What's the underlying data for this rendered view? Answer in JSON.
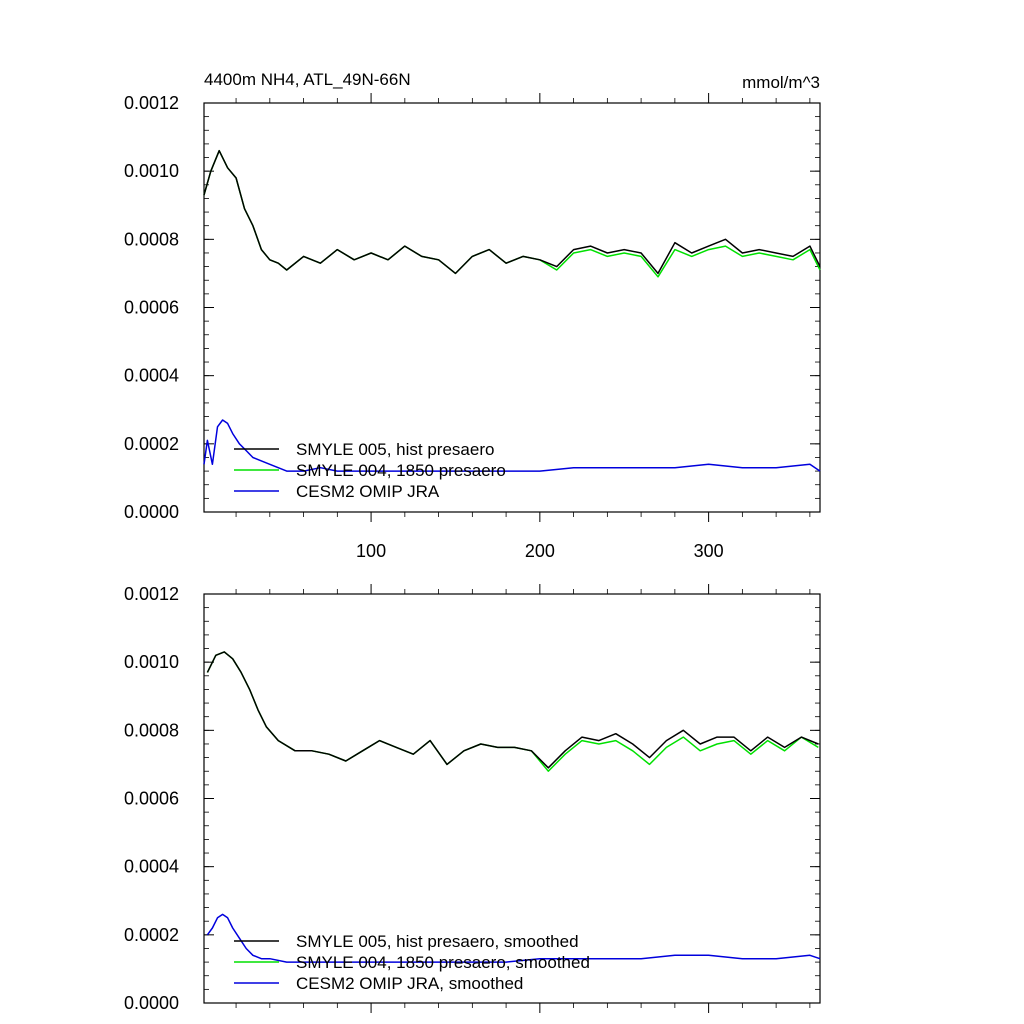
{
  "header": {
    "title": "4400m NH4, ATL_49N-66N",
    "units": "mmol/m^3"
  },
  "colors": {
    "smyle005": "#000000",
    "smyle004": "#00e000",
    "cesm2": "#0000dd"
  },
  "chart_data": [
    {
      "type": "line",
      "title": "4400m NH4, ATL_49N-66N",
      "units": "mmol/m^3",
      "xlim": [
        1,
        366
      ],
      "ylim": [
        0,
        0.0012
      ],
      "x_major_ticks": [
        100,
        200,
        300
      ],
      "x_tick_labels": [
        "100",
        "200",
        "300"
      ],
      "y_ticks": [
        0,
        0.0002,
        0.0004,
        0.0006,
        0.0008,
        0.001,
        0.0012
      ],
      "y_tick_labels": [
        "0.0000",
        "0.0002",
        "0.0004",
        "0.0006",
        "0.0008",
        "0.0010",
        "0.0012"
      ],
      "grid": false,
      "legend_position": "bottom-left",
      "series": [
        {
          "name": "SMYLE 005, hist presaero",
          "color_key": "smyle005",
          "x": [
            1,
            5,
            10,
            15,
            20,
            25,
            30,
            35,
            40,
            45,
            50,
            60,
            70,
            80,
            90,
            100,
            110,
            120,
            130,
            140,
            150,
            160,
            170,
            180,
            190,
            200,
            210,
            220,
            230,
            240,
            250,
            260,
            270,
            280,
            290,
            300,
            310,
            320,
            330,
            340,
            350,
            360,
            366
          ],
          "y": [
            0.00093,
            0.001,
            0.00106,
            0.00101,
            0.00098,
            0.00089,
            0.00084,
            0.00077,
            0.00074,
            0.00073,
            0.00071,
            0.00075,
            0.00073,
            0.00077,
            0.00074,
            0.00076,
            0.00074,
            0.00078,
            0.00075,
            0.00074,
            0.0007,
            0.00075,
            0.00077,
            0.00073,
            0.00075,
            0.00074,
            0.00072,
            0.00077,
            0.00078,
            0.00076,
            0.00077,
            0.00076,
            0.0007,
            0.00079,
            0.00076,
            0.00078,
            0.0008,
            0.00076,
            0.00077,
            0.00076,
            0.00075,
            0.00078,
            0.00072
          ]
        },
        {
          "name": "SMYLE 004, 1850 presaero",
          "color_key": "smyle004",
          "x": [
            1,
            5,
            10,
            15,
            20,
            25,
            30,
            35,
            40,
            45,
            50,
            60,
            70,
            80,
            90,
            100,
            110,
            120,
            130,
            140,
            150,
            160,
            170,
            180,
            190,
            200,
            210,
            220,
            230,
            240,
            250,
            260,
            270,
            280,
            290,
            300,
            310,
            320,
            330,
            340,
            350,
            360,
            366
          ],
          "y": [
            0.00093,
            0.001,
            0.00106,
            0.00101,
            0.00098,
            0.00089,
            0.00084,
            0.00077,
            0.00074,
            0.00073,
            0.00071,
            0.00075,
            0.00073,
            0.00077,
            0.00074,
            0.00076,
            0.00074,
            0.00078,
            0.00075,
            0.00074,
            0.0007,
            0.00075,
            0.00077,
            0.00073,
            0.00075,
            0.00074,
            0.00071,
            0.00076,
            0.00077,
            0.00075,
            0.00076,
            0.00075,
            0.00069,
            0.00077,
            0.00075,
            0.00077,
            0.00078,
            0.00075,
            0.00076,
            0.00075,
            0.00074,
            0.00077,
            0.00071
          ]
        },
        {
          "name": "CESM2 OMIP JRA",
          "color_key": "cesm2",
          "x": [
            1,
            3,
            6,
            9,
            12,
            15,
            18,
            22,
            26,
            30,
            35,
            40,
            50,
            60,
            70,
            80,
            90,
            100,
            120,
            140,
            160,
            180,
            200,
            220,
            240,
            260,
            280,
            300,
            320,
            340,
            360,
            366
          ],
          "y": [
            0.00014,
            0.00021,
            0.00014,
            0.00025,
            0.00027,
            0.00026,
            0.00023,
            0.0002,
            0.00018,
            0.00016,
            0.00015,
            0.00014,
            0.00012,
            0.00012,
            0.00013,
            0.00012,
            0.00012,
            0.00012,
            0.00012,
            0.00012,
            0.00012,
            0.00012,
            0.00012,
            0.00013,
            0.00013,
            0.00013,
            0.00013,
            0.00014,
            0.00013,
            0.00013,
            0.00014,
            0.00012
          ]
        }
      ]
    },
    {
      "type": "line",
      "xlim": [
        1,
        366
      ],
      "ylim": [
        0,
        0.0012
      ],
      "x_major_ticks": [
        100,
        200,
        300
      ],
      "x_tick_labels": [],
      "y_ticks": [
        0,
        0.0002,
        0.0004,
        0.0006,
        0.0008,
        0.001,
        0.0012
      ],
      "y_tick_labels": [
        "0.0000",
        "0.0002",
        "0.0004",
        "0.0006",
        "0.0008",
        "0.0010",
        "0.0012"
      ],
      "grid": false,
      "legend_position": "bottom-left",
      "series": [
        {
          "name": "SMYLE 005, hist presaero, smoothed",
          "color_key": "smyle005",
          "x": [
            3,
            8,
            13,
            18,
            23,
            28,
            33,
            38,
            45,
            55,
            65,
            75,
            85,
            95,
            105,
            115,
            125,
            135,
            145,
            155,
            165,
            175,
            185,
            195,
            205,
            215,
            225,
            235,
            245,
            255,
            265,
            275,
            285,
            295,
            305,
            315,
            325,
            335,
            345,
            355,
            365
          ],
          "y": [
            0.00097,
            0.00102,
            0.00103,
            0.00101,
            0.00097,
            0.00092,
            0.00086,
            0.00081,
            0.00077,
            0.00074,
            0.00074,
            0.00073,
            0.00071,
            0.00074,
            0.00077,
            0.00075,
            0.00073,
            0.00077,
            0.0007,
            0.00074,
            0.00076,
            0.00075,
            0.00075,
            0.00074,
            0.00069,
            0.00074,
            0.00078,
            0.00077,
            0.00079,
            0.00076,
            0.00072,
            0.00077,
            0.0008,
            0.00076,
            0.00078,
            0.00078,
            0.00074,
            0.00078,
            0.00075,
            0.00078,
            0.00076
          ]
        },
        {
          "name": "SMYLE 004, 1850 presaero, smoothed",
          "color_key": "smyle004",
          "x": [
            3,
            8,
            13,
            18,
            23,
            28,
            33,
            38,
            45,
            55,
            65,
            75,
            85,
            95,
            105,
            115,
            125,
            135,
            145,
            155,
            165,
            175,
            185,
            195,
            205,
            215,
            225,
            235,
            245,
            255,
            265,
            275,
            285,
            295,
            305,
            315,
            325,
            335,
            345,
            355,
            365
          ],
          "y": [
            0.00097,
            0.00102,
            0.00103,
            0.00101,
            0.00097,
            0.00092,
            0.00086,
            0.00081,
            0.00077,
            0.00074,
            0.00074,
            0.00073,
            0.00071,
            0.00074,
            0.00077,
            0.00075,
            0.00073,
            0.00077,
            0.0007,
            0.00074,
            0.00076,
            0.00075,
            0.00075,
            0.00074,
            0.00068,
            0.00073,
            0.00077,
            0.00076,
            0.00077,
            0.00074,
            0.0007,
            0.00075,
            0.00078,
            0.00074,
            0.00076,
            0.00077,
            0.00073,
            0.00077,
            0.00074,
            0.00078,
            0.00075
          ]
        },
        {
          "name": "CESM2 OMIP JRA, smoothed",
          "color_key": "cesm2",
          "x": [
            3,
            6,
            9,
            12,
            15,
            18,
            22,
            26,
            30,
            35,
            40,
            50,
            60,
            70,
            80,
            90,
            100,
            120,
            140,
            160,
            180,
            200,
            220,
            240,
            260,
            280,
            300,
            320,
            340,
            360,
            366
          ],
          "y": [
            0.0002,
            0.00022,
            0.00025,
            0.00026,
            0.00025,
            0.00022,
            0.00019,
            0.00016,
            0.00014,
            0.00013,
            0.00013,
            0.00012,
            0.00012,
            0.00012,
            0.00012,
            0.00012,
            0.00012,
            0.00012,
            0.00012,
            0.00012,
            0.00012,
            0.00013,
            0.00013,
            0.00013,
            0.00013,
            0.00014,
            0.00014,
            0.00013,
            0.00013,
            0.00014,
            0.00013
          ]
        }
      ]
    }
  ]
}
